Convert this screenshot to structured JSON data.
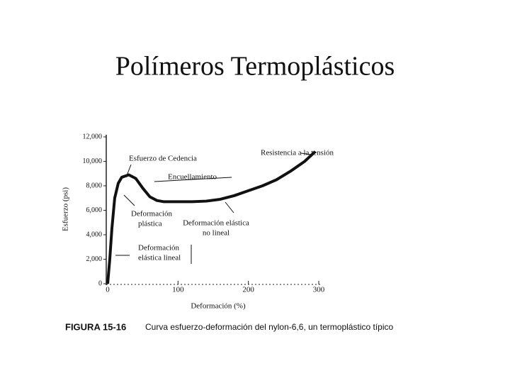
{
  "slide_title": "Polímeros Termoplásticos",
  "chart_data": {
    "type": "line",
    "x": [
      0,
      3,
      6,
      10,
      15,
      20,
      30,
      40,
      50,
      60,
      70,
      80,
      100,
      120,
      140,
      160,
      180,
      200,
      220,
      240,
      260,
      280,
      295
    ],
    "series": [
      {
        "name": "nylon-6,6",
        "color": "#111111",
        "values": [
          0,
          2000,
          4500,
          7000,
          8200,
          8700,
          8900,
          8600,
          7800,
          7100,
          6800,
          6700,
          6700,
          6700,
          6750,
          6900,
          7200,
          7600,
          8000,
          8500,
          9200,
          10000,
          10800
        ]
      }
    ],
    "xlim": [
      0,
      300
    ],
    "xticks": [
      0,
      100,
      200,
      300
    ],
    "ylim": [
      0,
      12000
    ],
    "yticks": [
      0,
      {
        "value": 2000,
        "label": "2,000"
      },
      {
        "value": 4000,
        "label": "4,000"
      },
      {
        "value": 6000,
        "label": "6,000"
      },
      {
        "value": 8000,
        "label": "8,000"
      },
      {
        "value": 10000,
        "label": "10,000"
      },
      {
        "value": 12000,
        "label": "12,000"
      }
    ],
    "x_label": "Deformación (%)",
    "y_label": "Esfuerzo (psi)",
    "annotations": [
      [
        "Esfuerzo de Cedencia"
      ],
      [
        "Resistencia a la tensión"
      ],
      [
        "Encuellamiento"
      ],
      [
        "Deformación",
        "plástica"
      ],
      [
        "Deformación elástica",
        "no lineal"
      ],
      [
        "Deformación",
        "elástica lineal"
      ]
    ],
    "caption_label": "FIGURA 15-16",
    "caption_text": "Curva esfuerzo-deformación del nylon-6,6, un termoplástico típico"
  }
}
